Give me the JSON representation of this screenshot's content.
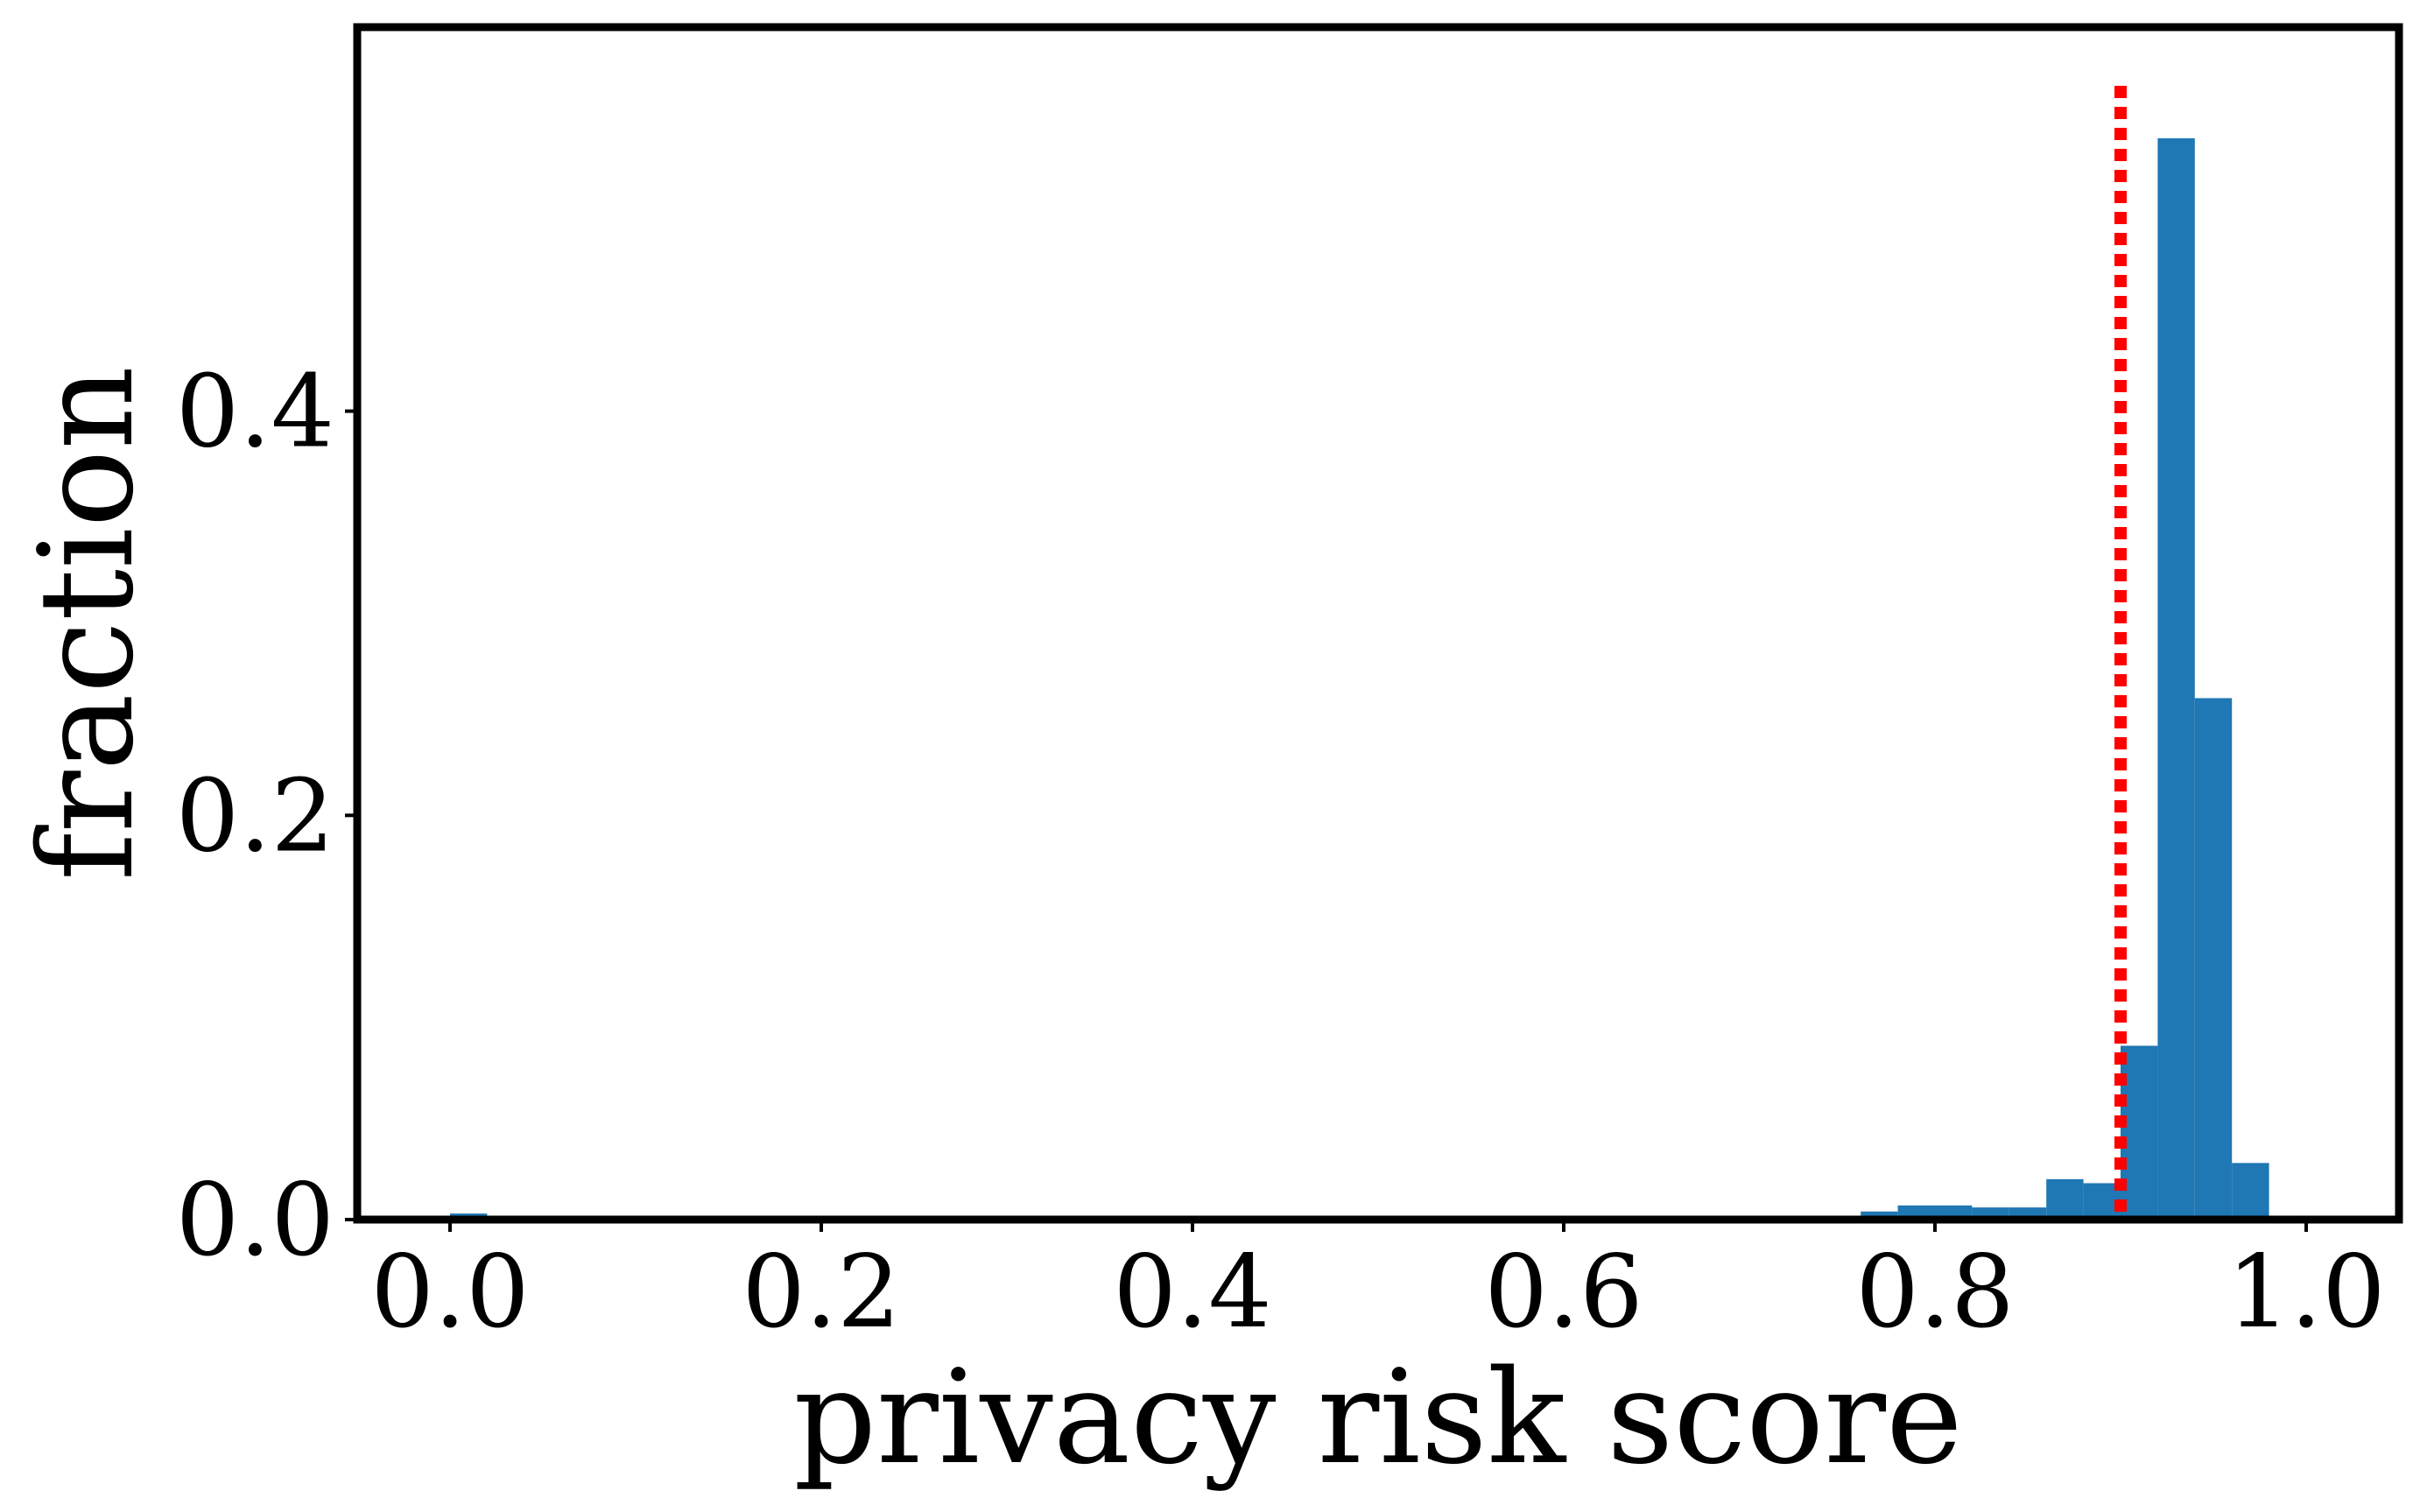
{
  "chart_data": {
    "type": "bar",
    "subtype": "histogram",
    "title": "",
    "xlabel": "privacy risk score",
    "ylabel": "fraction",
    "xlim": [
      -0.05,
      1.05
    ],
    "ylim": [
      0,
      0.59
    ],
    "xticks": [
      0.0,
      0.2,
      0.4,
      0.6,
      0.8,
      1.0
    ],
    "xtick_labels": [
      "0.0",
      "0.2",
      "0.4",
      "0.6",
      "0.8",
      "1.0"
    ],
    "yticks": [
      0.0,
      0.2,
      0.4
    ],
    "ytick_labels": [
      "0.0",
      "0.2",
      "0.4"
    ],
    "bin_width": 0.02,
    "bins": [
      {
        "x0": 0.0,
        "value": 0.003
      },
      {
        "x0": 0.76,
        "value": 0.004
      },
      {
        "x0": 0.78,
        "value": 0.007
      },
      {
        "x0": 0.8,
        "value": 0.007
      },
      {
        "x0": 0.82,
        "value": 0.006
      },
      {
        "x0": 0.84,
        "value": 0.006
      },
      {
        "x0": 0.86,
        "value": 0.02
      },
      {
        "x0": 0.88,
        "value": 0.018
      },
      {
        "x0": 0.9,
        "value": 0.086
      },
      {
        "x0": 0.92,
        "value": 0.535
      },
      {
        "x0": 0.94,
        "value": 0.258
      },
      {
        "x0": 0.96,
        "value": 0.028
      }
    ],
    "threshold_line": {
      "x": 0.9,
      "color": "#ff0000",
      "style": "dotted"
    },
    "bar_color": "#1f77b4",
    "grid": false,
    "legend": "none"
  }
}
